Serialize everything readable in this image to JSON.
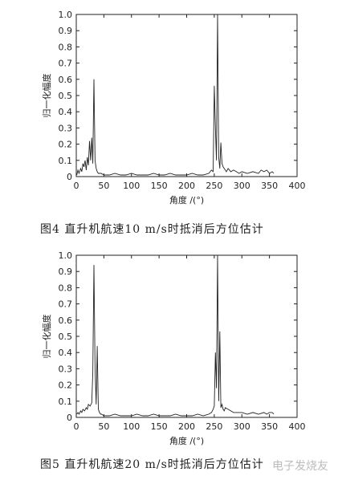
{
  "figures": [
    {
      "caption": "图4   直升机航速10 m/s时抵消后方位估计"
    },
    {
      "caption": "图5   直升机航速20 m/s时抵消后方位估计"
    }
  ],
  "watermark": "电子发烧友",
  "chart_data": [
    {
      "type": "line",
      "xlabel": "角度 /(°)",
      "ylabel": "归一化幅度",
      "xlim": [
        0,
        400
      ],
      "ylim": [
        0,
        1.0
      ],
      "xticks": [
        0,
        50,
        100,
        150,
        200,
        250,
        300,
        350,
        400
      ],
      "yticks": [
        0,
        0.1,
        0.2,
        0.3,
        0.4,
        0.5,
        0.6,
        0.7,
        0.8,
        0.9,
        1.0
      ],
      "grid": false,
      "series": [
        {
          "x": [
            1,
            3,
            5,
            8,
            10,
            12,
            14,
            16,
            18,
            20,
            22,
            24,
            26,
            28,
            30,
            32,
            34,
            36,
            38,
            40,
            45,
            50,
            60,
            70,
            80,
            90,
            100,
            110,
            120,
            130,
            140,
            150,
            160,
            170,
            180,
            190,
            200,
            210,
            220,
            230,
            240,
            245,
            248,
            250,
            252,
            254,
            256,
            258,
            260,
            262,
            264,
            266,
            268,
            270,
            272,
            275,
            280,
            285,
            290,
            295,
            300,
            310,
            320,
            330,
            335,
            340,
            345,
            350,
            355,
            358
          ],
          "values": [
            0.01,
            0.04,
            0.02,
            0.05,
            0.03,
            0.08,
            0.06,
            0.1,
            0.04,
            0.12,
            0.07,
            0.22,
            0.1,
            0.24,
            0.08,
            0.6,
            0.1,
            0.05,
            0.03,
            0.02,
            0.02,
            0.01,
            0.01,
            0.02,
            0.01,
            0.01,
            0.02,
            0.01,
            0.01,
            0.01,
            0.02,
            0.01,
            0.01,
            0.02,
            0.01,
            0.01,
            0.01,
            0.02,
            0.01,
            0.01,
            0.02,
            0.04,
            0.03,
            0.56,
            0.3,
            0.1,
            1.0,
            0.12,
            0.05,
            0.21,
            0.08,
            0.06,
            0.05,
            0.04,
            0.03,
            0.05,
            0.03,
            0.04,
            0.03,
            0.02,
            0.03,
            0.02,
            0.03,
            0.02,
            0.04,
            0.03,
            0.04,
            0.02,
            0.03,
            0.02
          ]
        }
      ]
    },
    {
      "type": "line",
      "xlabel": "角度 /(°)",
      "ylabel": "归一化幅度",
      "xlim": [
        0,
        400
      ],
      "ylim": [
        0,
        1.0
      ],
      "xticks": [
        0,
        50,
        100,
        150,
        200,
        250,
        300,
        350,
        400
      ],
      "yticks": [
        0,
        0.1,
        0.2,
        0.3,
        0.4,
        0.5,
        0.6,
        0.7,
        0.8,
        0.9,
        1.0
      ],
      "grid": false,
      "series": [
        {
          "x": [
            1,
            3,
            5,
            8,
            10,
            12,
            15,
            18,
            20,
            22,
            25,
            28,
            30,
            32,
            34,
            36,
            38,
            40,
            42,
            44,
            46,
            50,
            60,
            70,
            80,
            90,
            100,
            110,
            120,
            130,
            140,
            150,
            160,
            170,
            180,
            190,
            200,
            210,
            220,
            230,
            240,
            245,
            248,
            250,
            252,
            254,
            256,
            258,
            260,
            262,
            264,
            266,
            268,
            270,
            275,
            280,
            285,
            290,
            300,
            310,
            320,
            330,
            340,
            345,
            350,
            355,
            358
          ],
          "values": [
            0.02,
            0.03,
            0.02,
            0.04,
            0.03,
            0.05,
            0.04,
            0.06,
            0.05,
            0.08,
            0.07,
            0.09,
            0.28,
            0.94,
            0.3,
            0.08,
            0.44,
            0.05,
            0.03,
            0.02,
            0.02,
            0.01,
            0.01,
            0.02,
            0.01,
            0.01,
            0.01,
            0.02,
            0.01,
            0.01,
            0.02,
            0.01,
            0.01,
            0.01,
            0.02,
            0.01,
            0.01,
            0.01,
            0.02,
            0.01,
            0.02,
            0.03,
            0.05,
            0.07,
            0.4,
            0.18,
            1.0,
            0.1,
            0.53,
            0.06,
            0.08,
            0.05,
            0.04,
            0.06,
            0.05,
            0.04,
            0.03,
            0.03,
            0.03,
            0.02,
            0.03,
            0.02,
            0.03,
            0.02,
            0.03,
            0.03,
            0.02
          ]
        }
      ]
    }
  ]
}
